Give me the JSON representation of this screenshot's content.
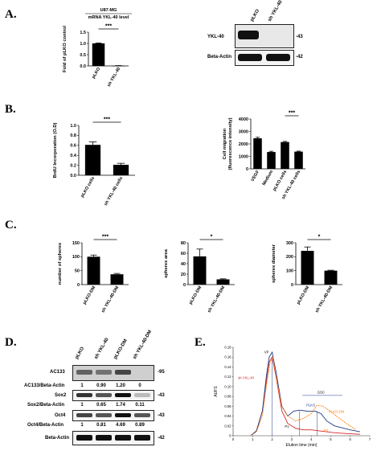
{
  "panel_letters": [
    "A.",
    "B.",
    "C.",
    "D.",
    "E."
  ],
  "blots": {
    "A": {
      "lanes": [
        "pLKO",
        "sh YKL-40"
      ],
      "rows": [
        {
          "label": "YKL-40",
          "size": "-43"
        },
        {
          "label": "Beta-Actin",
          "size": "-42"
        }
      ]
    },
    "D": {
      "lanes": [
        "pLKO",
        "sh YKL-40",
        "pLKO-DM",
        "sh YKL-40-DM"
      ],
      "rows": [
        {
          "label": "AC133",
          "size": "-95",
          "ratio_label": "AC133/Beta-Actin",
          "ratios": [
            "1",
            "0.90",
            "1.20",
            "0"
          ]
        },
        {
          "label": "Sox2",
          "size": "-43",
          "ratio_label": "Sox2/Beta-Actin",
          "ratios": [
            "1",
            "0.65",
            "1.74",
            "0.11"
          ]
        },
        {
          "label": "Oct4",
          "size": "-43",
          "ratio_label": "Oct4/Beta-Actin",
          "ratios": [
            "1",
            "0.81",
            "4.69",
            "0.89"
          ]
        },
        {
          "label": "Beta-Actin",
          "size": "-42"
        }
      ]
    }
  },
  "chart_data": [
    {
      "panel": "A",
      "type": "bar",
      "title": "U87-MG",
      "subtitle": "mRNA YKL-40 level",
      "categories": [
        "pLKO",
        "sh YKL-40"
      ],
      "values": [
        1.0,
        0.01
      ],
      "errors": [
        0.02,
        0.005
      ],
      "ylabel": "Fold of pLKO control",
      "ylim": [
        0,
        1.5
      ],
      "yticks": [
        "0.0",
        "0.5",
        "1.0",
        "1.5"
      ],
      "significance": "***"
    },
    {
      "panel": "B1",
      "type": "bar",
      "categories": [
        "pLKO cells",
        "sh YKL-40 cells"
      ],
      "values": [
        0.61,
        0.21
      ],
      "errors": [
        0.06,
        0.03
      ],
      "ylabel": "BrdU Incorporation (O.D)",
      "ylim": [
        0,
        1.0
      ],
      "yticks": [
        "0.0",
        "0.2",
        "0.4",
        "0.6",
        "0.8",
        "1.0"
      ],
      "significance": "***"
    },
    {
      "panel": "B2",
      "type": "bar",
      "categories": [
        "VEGF",
        "Medium",
        "pLKO cells",
        "sh YKL-40 cells"
      ],
      "values": [
        2450,
        1350,
        2150,
        1380
      ],
      "errors": [
        80,
        60,
        50,
        40
      ],
      "ylabel": "Cell migration (fluorescence intensity)",
      "ylim": [
        0,
        4000
      ],
      "yticks": [
        "0",
        "1000",
        "2000",
        "3000",
        "4000"
      ],
      "significance": "***"
    },
    {
      "panel": "C1",
      "type": "bar",
      "categories": [
        "pLKO-DM",
        "sh YKL-40-DM"
      ],
      "values": [
        100,
        37
      ],
      "errors": [
        6,
        3
      ],
      "ylabel": "number of spheres",
      "ylim": [
        0,
        150
      ],
      "yticks": [
        "0",
        "50",
        "100",
        "150"
      ],
      "significance": "***"
    },
    {
      "panel": "C2",
      "type": "bar",
      "categories": [
        "pLKO-DM",
        "sh YKL-40-DM"
      ],
      "values": [
        54,
        10
      ],
      "errors": [
        14,
        1
      ],
      "ylabel": "spheres area",
      "ylim": [
        0,
        80
      ],
      "yticks": [
        "0",
        "20",
        "40",
        "60",
        "80"
      ],
      "significance": "*"
    },
    {
      "panel": "C3",
      "type": "bar",
      "categories": [
        "pLKO-DM",
        "sh YKL-40-DM"
      ],
      "values": [
        242,
        100
      ],
      "errors": [
        28,
        3
      ],
      "ylabel": "spheres diameter",
      "ylim": [
        0,
        300
      ],
      "yticks": [
        "0",
        "100",
        "200",
        "300"
      ],
      "significance": "*"
    },
    {
      "panel": "E",
      "type": "line",
      "xlabel": "Elution time (min)",
      "ylabel": "AUFS",
      "xlim": [
        0,
        7
      ],
      "ylim": [
        0,
        0.18
      ],
      "xticks": [
        "0",
        "1",
        "2",
        "3",
        "4",
        "5",
        "6",
        "7"
      ],
      "yticks": [
        "0",
        "0.02",
        "0.04",
        "0.06",
        "0.08",
        "0.10",
        "0.12",
        "0.14",
        "0.16",
        "0.18"
      ],
      "series": [
        {
          "name": "sh-YKL-40",
          "color": "#d62728",
          "x": [
            0.9,
            1.2,
            1.5,
            1.7,
            1.85,
            2.0,
            2.2,
            2.5,
            2.8,
            3.2,
            3.6,
            4.0,
            4.4,
            4.8,
            5.2,
            6.0,
            6.5
          ],
          "y": [
            0.0,
            0.01,
            0.05,
            0.11,
            0.15,
            0.16,
            0.12,
            0.05,
            0.025,
            0.015,
            0.012,
            0.012,
            0.01,
            0.008,
            0.006,
            0.004,
            0.003
          ]
        },
        {
          "name": "PLKO",
          "color": "#1f3c88",
          "x": [
            0.9,
            1.2,
            1.5,
            1.7,
            1.85,
            2.0,
            2.2,
            2.5,
            2.8,
            3.1,
            3.4,
            3.8,
            4.2,
            4.5,
            4.8,
            5.2,
            6.0,
            6.5
          ],
          "y": [
            0.0,
            0.01,
            0.05,
            0.12,
            0.16,
            0.17,
            0.13,
            0.06,
            0.04,
            0.05,
            0.052,
            0.05,
            0.05,
            0.045,
            0.03,
            0.02,
            0.012,
            0.008
          ]
        },
        {
          "name": "PLKO-DM",
          "color": "#ff7f0e",
          "x": [
            0.9,
            1.2,
            1.5,
            1.7,
            1.9,
            2.05,
            2.2,
            2.5,
            2.8,
            3.2,
            3.6,
            4.0,
            4.3,
            4.6,
            4.9,
            5.3,
            5.8,
            6.3
          ],
          "y": [
            0.0,
            0.008,
            0.04,
            0.1,
            0.15,
            0.16,
            0.12,
            0.06,
            0.04,
            0.03,
            0.035,
            0.045,
            0.062,
            0.06,
            0.052,
            0.04,
            0.025,
            0.012
          ]
        }
      ],
      "annotations": [
        "VP",
        "P1",
        "P3",
        "GSC"
      ]
    }
  ]
}
